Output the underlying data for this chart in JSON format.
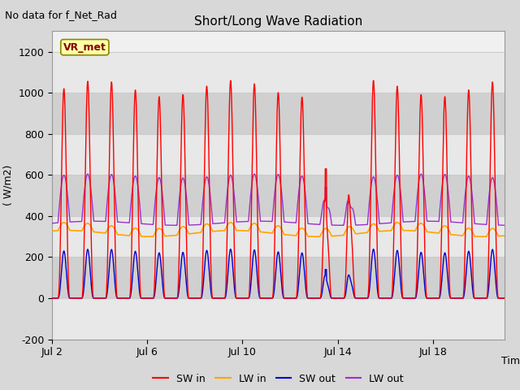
{
  "title": "Short/Long Wave Radiation",
  "ylabel": "( W/m2)",
  "xlabel": "Time",
  "annotation_top_left": "No data for f_Net_Rad",
  "legend_label": "VR_met",
  "ylim": [
    -200,
    1300
  ],
  "yticks": [
    -200,
    0,
    200,
    400,
    600,
    800,
    1000,
    1200
  ],
  "xtick_labels": [
    "Jul 2",
    "Jul 6",
    "Jul 10",
    "Jul 14",
    "Jul 18"
  ],
  "xtick_positions": [
    0,
    4,
    8,
    12,
    16
  ],
  "series": {
    "SW_in": {
      "color": "#ff0000",
      "label": "SW in"
    },
    "LW_in": {
      "color": "#ffa500",
      "label": "LW in"
    },
    "SW_out": {
      "color": "#0000cc",
      "label": "SW out"
    },
    "LW_out": {
      "color": "#9933cc",
      "label": "LW out"
    }
  },
  "grid_color": "#cccccc",
  "bg_color": "#d8d8d8",
  "plot_bg_color": "#f0f0f0",
  "band_color_light": "#e8e8e8",
  "band_color_dark": "#d0d0d0",
  "n_days": 19,
  "pts_per_day": 144,
  "vr_met_box_facecolor": "#ffffaa",
  "vr_met_box_edgecolor": "#888800",
  "vr_met_text_color": "#880000",
  "annotation_fontsize": 9,
  "title_fontsize": 11,
  "tick_fontsize": 9,
  "label_fontsize": 9,
  "legend_fontsize": 9
}
